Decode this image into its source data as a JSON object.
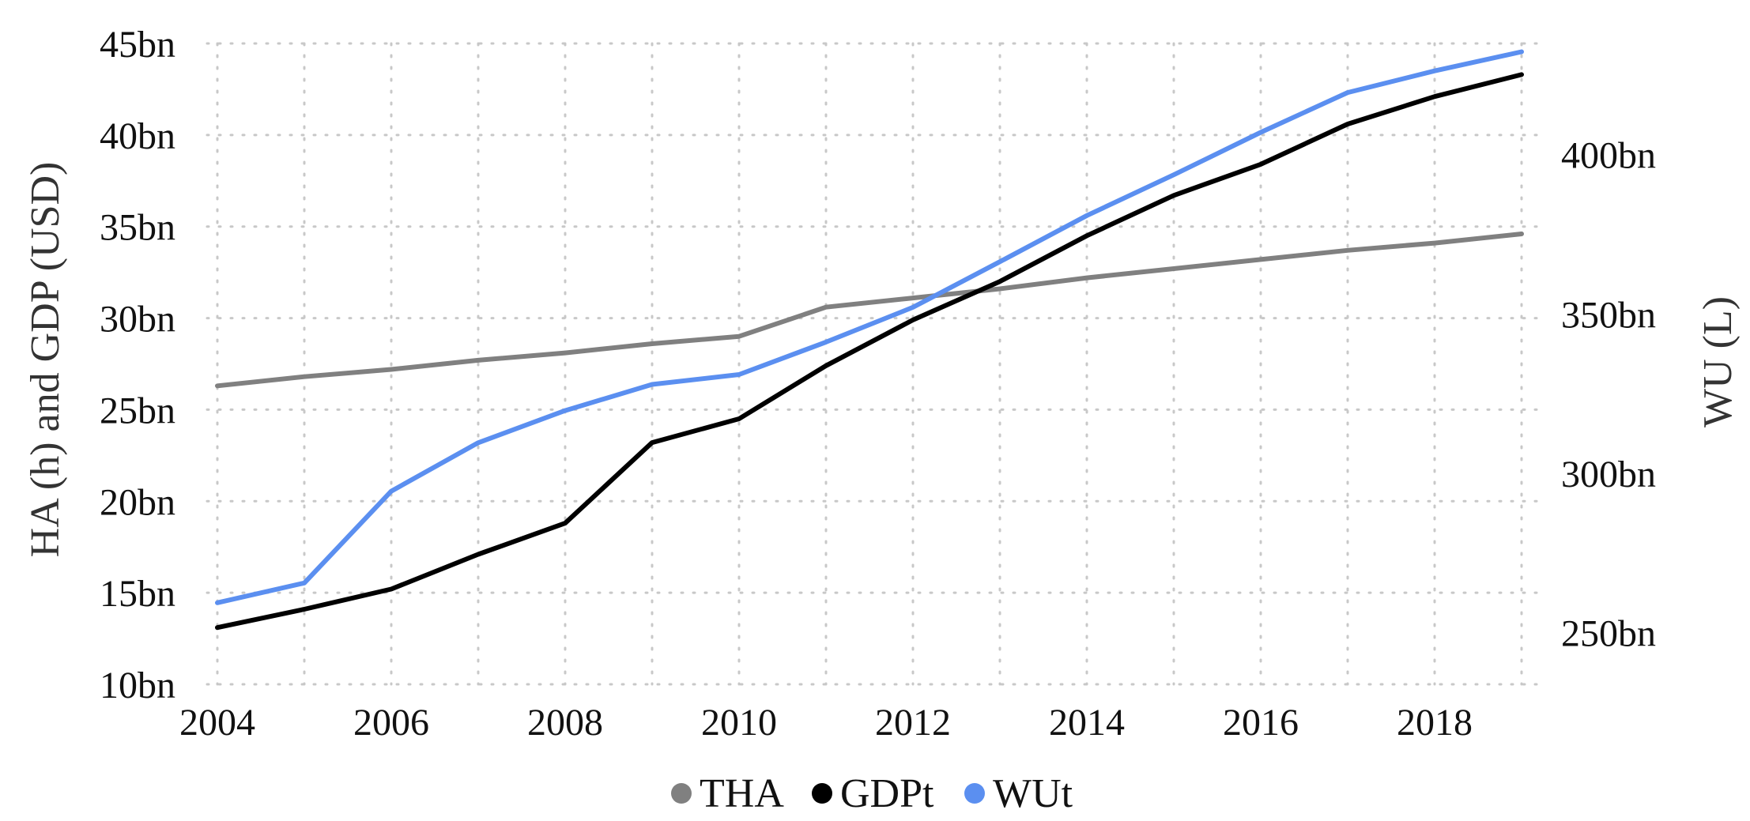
{
  "chart_data": {
    "type": "line",
    "x": [
      2004,
      2005,
      2006,
      2007,
      2008,
      2009,
      2010,
      2011,
      2012,
      2013,
      2014,
      2015,
      2016,
      2017,
      2018,
      2019
    ],
    "xlim": [
      2004,
      2019
    ],
    "x_ticks": [
      2004,
      2006,
      2008,
      2010,
      2012,
      2014,
      2016,
      2018
    ],
    "x_tick_labels": [
      "2004",
      "2006",
      "2008",
      "2010",
      "2012",
      "2014",
      "2016",
      "2018"
    ],
    "ylabel_left": "HA (h) and GDP (USD)",
    "ylim_left": [
      10,
      45
    ],
    "y_ticks_left": [
      10,
      15,
      20,
      25,
      30,
      35,
      40,
      45
    ],
    "y_tick_labels_left": [
      "10bn",
      "15bn",
      "20bn",
      "25bn",
      "30bn",
      "35bn",
      "40bn",
      "45bn"
    ],
    "ylabel_right": "WU (L)",
    "ylim_right": [
      233.8,
      434.9
    ],
    "y_ticks_right": [
      250,
      300,
      350,
      400
    ],
    "y_tick_labels_right": [
      "250bn",
      "300bn",
      "350bn",
      "400bn"
    ],
    "grid": true,
    "legend_position": "bottom",
    "series": [
      {
        "name": "THA",
        "axis": "left",
        "color": "#808080",
        "values": [
          26.3,
          26.8,
          27.2,
          27.7,
          28.1,
          28.6,
          29.0,
          30.6,
          31.1,
          31.6,
          32.2,
          32.7,
          33.2,
          33.7,
          34.1,
          34.6
        ]
      },
      {
        "name": "GDPt",
        "axis": "left",
        "color": "#000000",
        "values": [
          13.1,
          14.1,
          15.2,
          17.1,
          18.8,
          23.2,
          24.5,
          27.4,
          29.9,
          32.0,
          34.5,
          36.7,
          38.4,
          40.6,
          42.1,
          43.3
        ]
      },
      {
        "name": "WUt",
        "axis": "right",
        "color": "#5b8ff0",
        "values": [
          259.4,
          265.6,
          294.4,
          309.6,
          319.7,
          327.9,
          331.0,
          341.2,
          352.1,
          366.4,
          380.9,
          393.7,
          407.0,
          419.5,
          426.3,
          432.3
        ]
      }
    ]
  }
}
